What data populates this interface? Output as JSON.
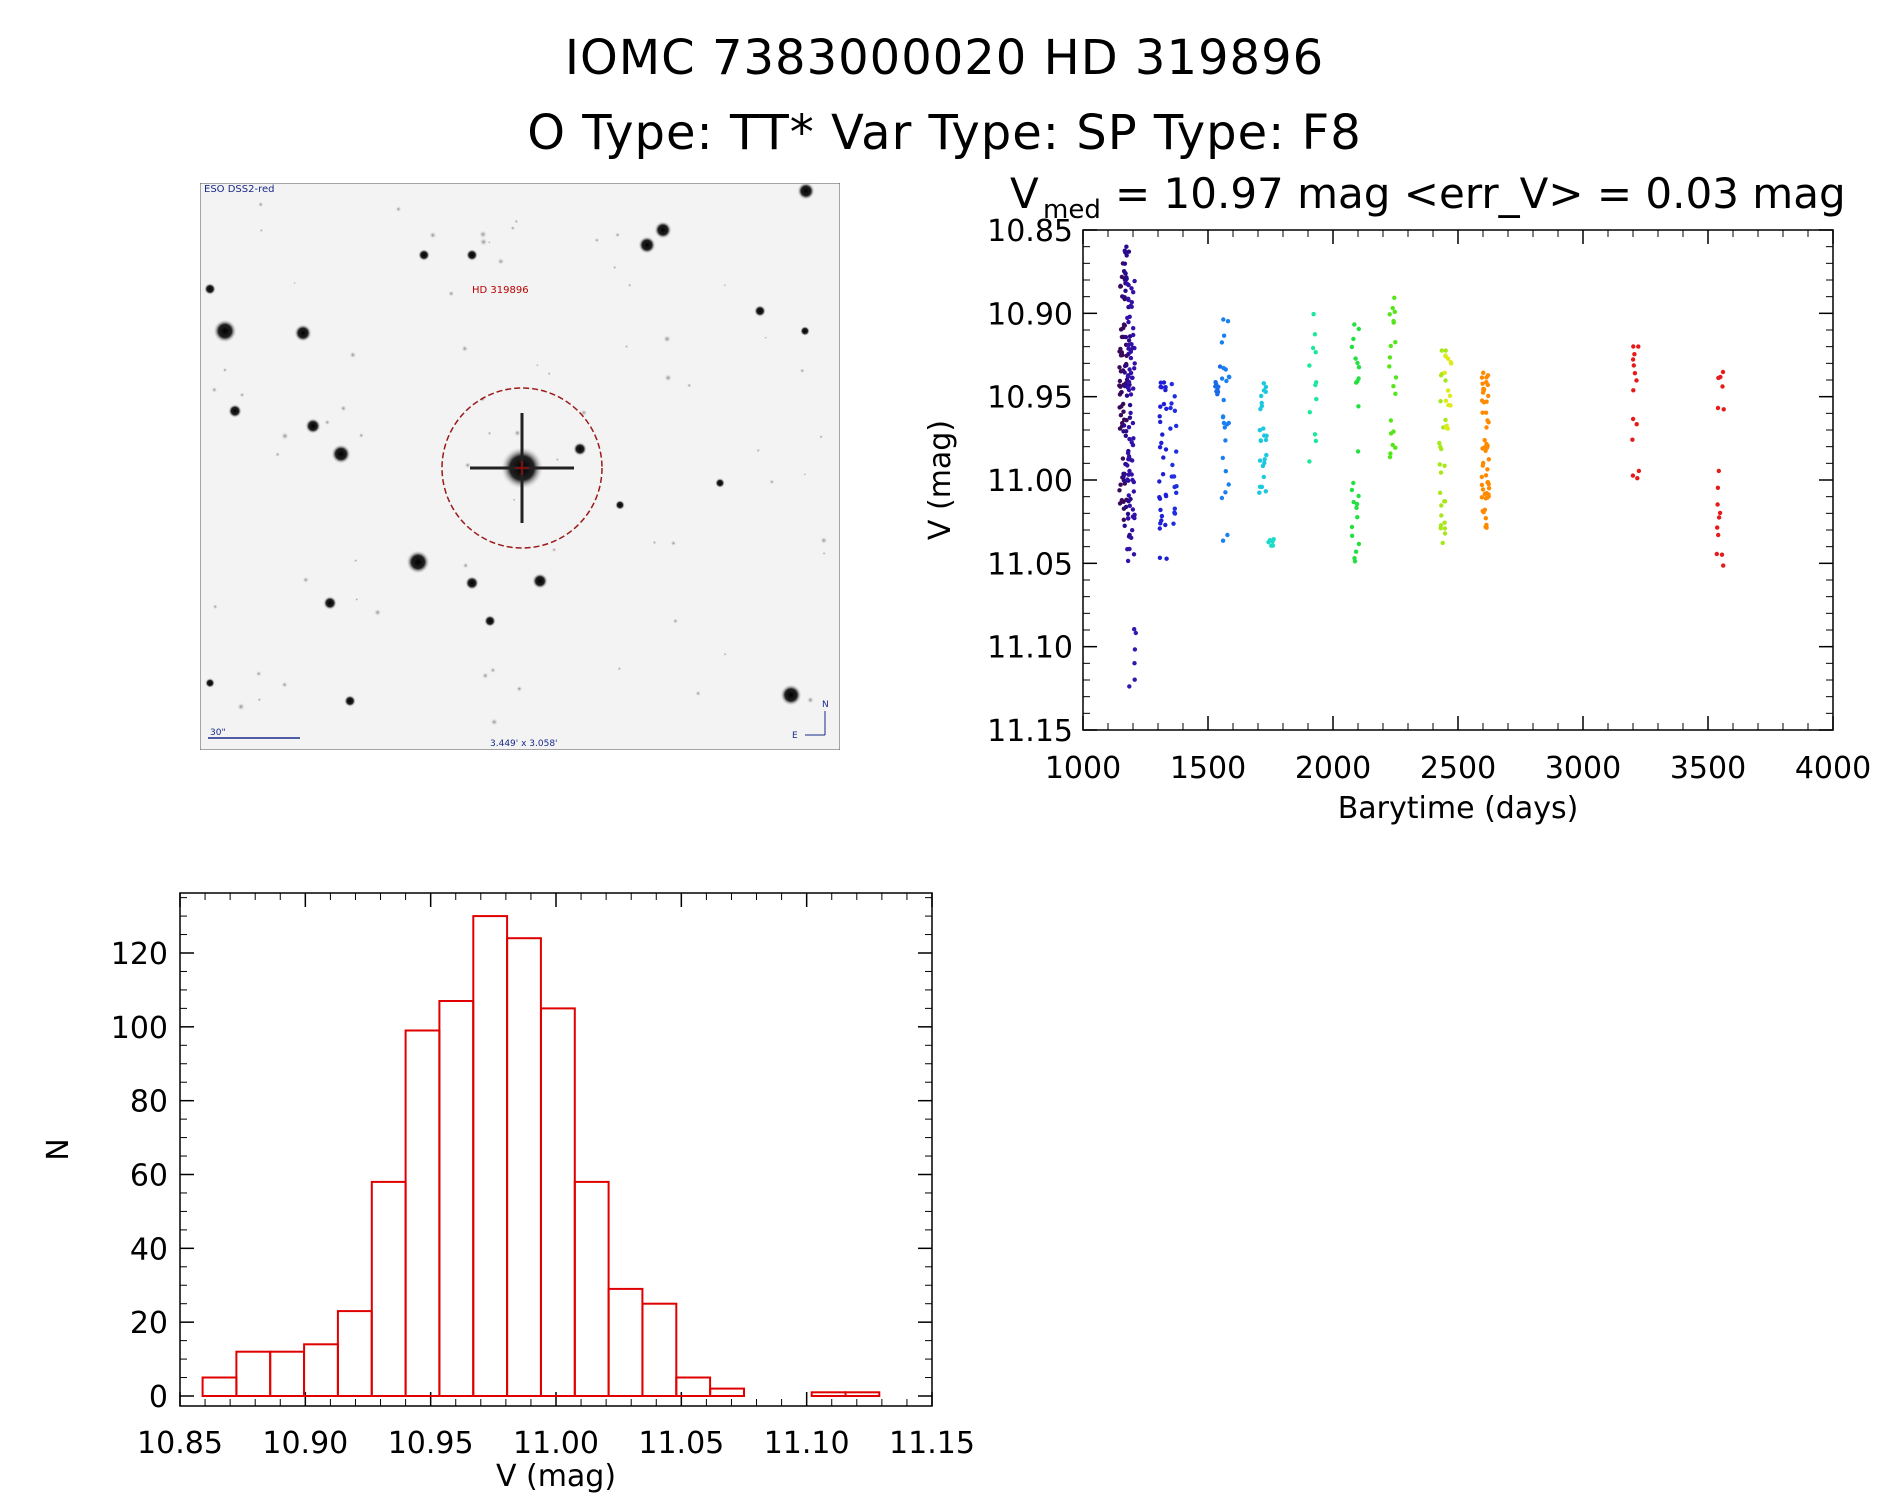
{
  "header": {
    "line1": "IOMC 7383000020    HD 319896",
    "line2": "O Type: TT*  Var Type:    SP Type: F8"
  },
  "finder": {
    "survey_label": "ESO DSS2-red",
    "object_label": "HD 319896",
    "scale_label": "30\"",
    "fov_label": "3.449' x 3.058'",
    "north_label": "N",
    "east_label": "E"
  },
  "lightcurve_stats": {
    "v_symbol": "V",
    "v_subscript": "med",
    "v_value_text": "= 10.97 mag <err_V> = 0.03 mag"
  },
  "chart_data": [
    {
      "type": "scatter",
      "name": "light-curve",
      "xlabel": "Barytime (days)",
      "ylabel": "V (mag)",
      "xlim": [
        1000,
        4000
      ],
      "ylim": [
        11.15,
        10.85
      ],
      "y_inverted": true,
      "xticks": [
        "1000",
        "1500",
        "2000",
        "2500",
        "3000",
        "3500",
        "4000"
      ],
      "yticks": [
        "10.85",
        "10.90",
        "10.95",
        "11.00",
        "11.05",
        "11.10",
        "11.15"
      ],
      "groups": [
        {
          "x": 1160,
          "color": "#3a0a5a",
          "n": 60,
          "ymin": 10.87,
          "ymax": 11.03
        },
        {
          "x": 1175,
          "color": "#2a0a8a",
          "n": 50,
          "ymin": 10.86,
          "ymax": 11.04
        },
        {
          "x": 1192,
          "color": "#3310a8",
          "n": 70,
          "ymin": 10.88,
          "ymax": 11.05
        },
        {
          "x": 1200,
          "color": "#3318b0",
          "n": 6,
          "ymin": 11.07,
          "ymax": 11.125
        },
        {
          "x": 1320,
          "color": "#1f1fd6",
          "n": 30,
          "ymin": 10.93,
          "ymax": 11.05
        },
        {
          "x": 1360,
          "color": "#1f2fe0",
          "n": 18,
          "ymin": 10.94,
          "ymax": 11.04
        },
        {
          "x": 1540,
          "color": "#1a6ae8",
          "n": 10,
          "ymin": 10.93,
          "ymax": 10.95
        },
        {
          "x": 1570,
          "color": "#1a7ff0",
          "n": 25,
          "ymin": 10.9,
          "ymax": 11.04
        },
        {
          "x": 1720,
          "color": "#1ac8e0",
          "n": 25,
          "ymin": 10.94,
          "ymax": 11.01
        },
        {
          "x": 1750,
          "color": "#1adcc8",
          "n": 6,
          "ymin": 11.035,
          "ymax": 11.04
        },
        {
          "x": 1920,
          "color": "#1ae89a",
          "n": 12,
          "ymin": 10.9,
          "ymax": 10.99
        },
        {
          "x": 2090,
          "color": "#22e040",
          "n": 25,
          "ymin": 10.905,
          "ymax": 11.05
        },
        {
          "x": 2240,
          "color": "#55e61a",
          "n": 20,
          "ymin": 10.89,
          "ymax": 10.99
        },
        {
          "x": 2440,
          "color": "#a6e81a",
          "n": 25,
          "ymin": 10.92,
          "ymax": 11.04
        },
        {
          "x": 2460,
          "color": "#dceb1a",
          "n": 15,
          "ymin": 10.92,
          "ymax": 10.97
        },
        {
          "x": 2610,
          "color": "#ff8a00",
          "n": 55,
          "ymin": 10.935,
          "ymax": 11.03
        },
        {
          "x": 3210,
          "color": "#e61a1a",
          "n": 14,
          "ymin": 10.915,
          "ymax": 11.0
        },
        {
          "x": 3550,
          "color": "#e61a1a",
          "n": 16,
          "ymin": 10.935,
          "ymax": 11.055
        }
      ]
    },
    {
      "type": "bar",
      "name": "histogram",
      "xlabel": "V (mag)",
      "ylabel": "N",
      "xlim": [
        10.85,
        11.15
      ],
      "ylim": [
        0,
        130
      ],
      "xticks": [
        "10.85",
        "10.90",
        "10.95",
        "11.00",
        "11.05",
        "11.10",
        "11.15"
      ],
      "yticks": [
        "0",
        "20",
        "40",
        "60",
        "80",
        "100",
        "120"
      ],
      "bin_width": 0.0135,
      "bin_start": 10.859,
      "values": [
        5,
        12,
        12,
        14,
        23,
        58,
        99,
        107,
        130,
        124,
        105,
        58,
        29,
        25,
        5,
        2,
        0,
        0,
        1,
        1
      ],
      "color": "#e00000"
    }
  ]
}
